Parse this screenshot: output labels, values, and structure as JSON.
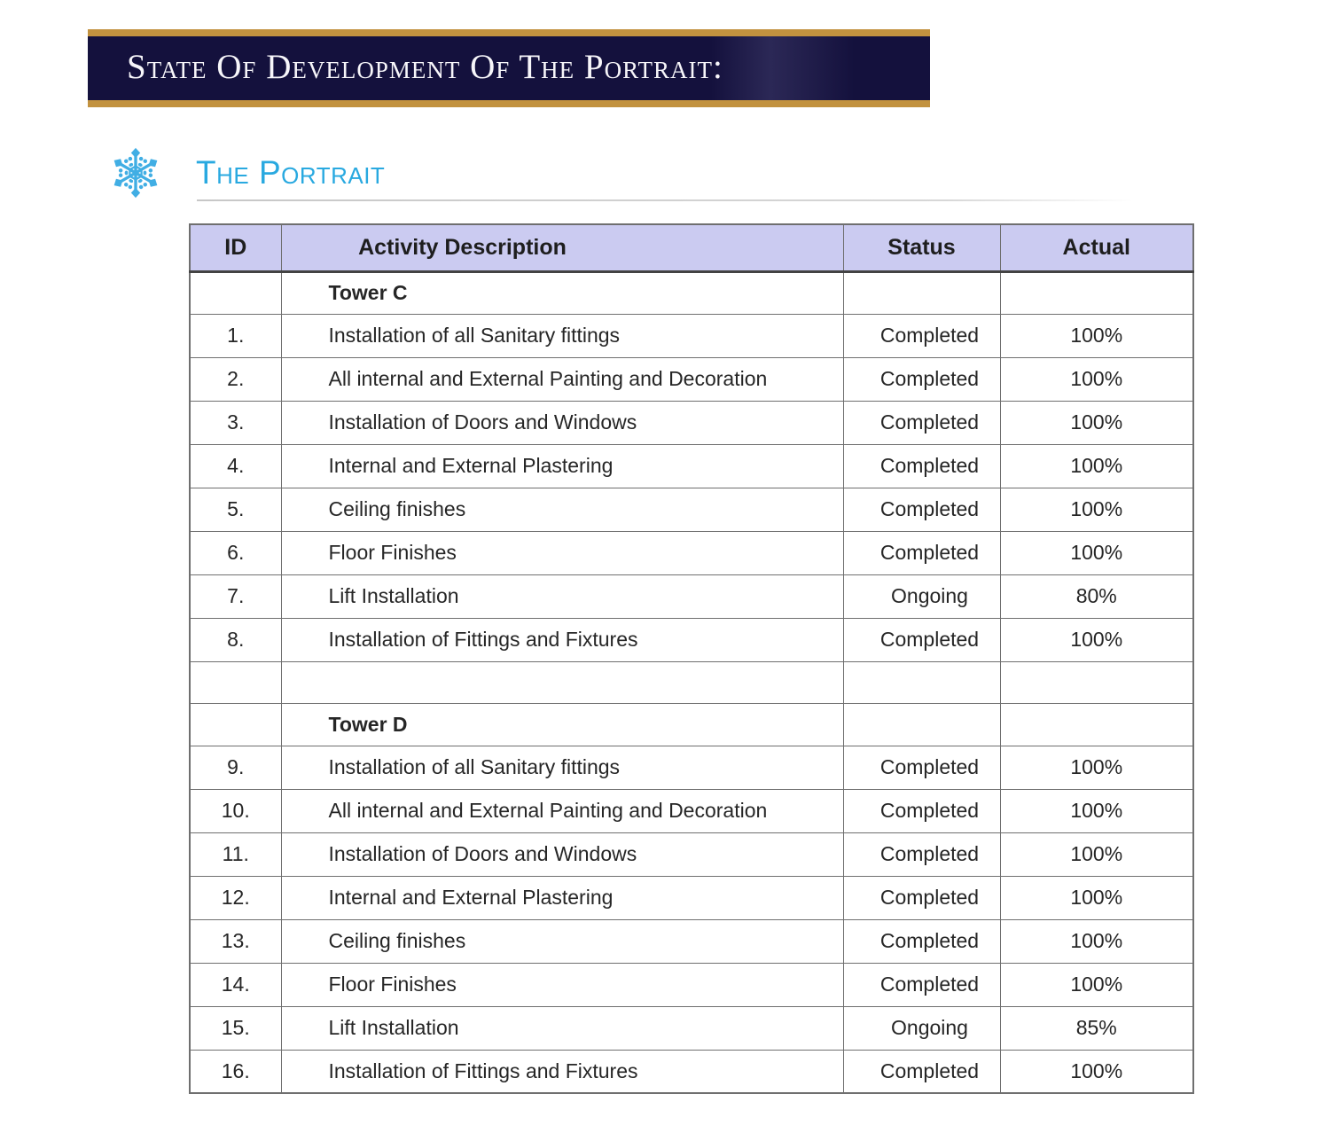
{
  "banner": {
    "title": "State Of Development Of The Portrait:",
    "background_color": "#14113D",
    "border_color": "#C2923F",
    "text_color": "#F7F6FA"
  },
  "section": {
    "title": "The Portrait",
    "icon": "snowflake-icon",
    "accent_color": "#29A9E0",
    "icon_color": "#41AEE4"
  },
  "table": {
    "headers": [
      "ID",
      "Activity Description",
      "Status",
      "Actual"
    ],
    "header_fill": "#CBCBF1",
    "border_color": "#6F6F6F",
    "rows": [
      {
        "type": "group",
        "id": "",
        "activity": "Tower C",
        "status": "",
        "actual": ""
      },
      {
        "type": "data",
        "id": "1.",
        "activity": "Installation of all Sanitary fittings",
        "status": "Completed",
        "actual": "100%"
      },
      {
        "type": "data",
        "id": "2.",
        "activity": "All internal and External Painting and Decoration",
        "status": "Completed",
        "actual": "100%"
      },
      {
        "type": "data",
        "id": "3.",
        "activity": "Installation of Doors and Windows",
        "status": "Completed",
        "actual": "100%"
      },
      {
        "type": "data",
        "id": "4.",
        "activity": "Internal and External Plastering",
        "status": "Completed",
        "actual": "100%"
      },
      {
        "type": "data",
        "id": "5.",
        "activity": "Ceiling finishes",
        "status": "Completed",
        "actual": "100%"
      },
      {
        "type": "data",
        "id": "6.",
        "activity": "Floor Finishes",
        "status": "Completed",
        "actual": "100%"
      },
      {
        "type": "data",
        "id": "7.",
        "activity": "Lift Installation",
        "status": "Ongoing",
        "actual": "80%"
      },
      {
        "type": "data",
        "id": "8.",
        "activity": "Installation of Fittings and Fixtures",
        "status": "Completed",
        "actual": "100%"
      },
      {
        "type": "empty",
        "id": "",
        "activity": "",
        "status": "",
        "actual": ""
      },
      {
        "type": "group",
        "id": "",
        "activity": "Tower D",
        "status": "",
        "actual": ""
      },
      {
        "type": "data",
        "id": "9.",
        "activity": "Installation of all Sanitary fittings",
        "status": "Completed",
        "actual": "100%"
      },
      {
        "type": "data",
        "id": "10.",
        "activity": "All internal and External Painting and Decoration",
        "status": "Completed",
        "actual": "100%"
      },
      {
        "type": "data",
        "id": "11.",
        "activity": "Installation of Doors and Windows",
        "status": "Completed",
        "actual": "100%"
      },
      {
        "type": "data",
        "id": "12.",
        "activity": "Internal and External Plastering",
        "status": "Completed",
        "actual": "100%"
      },
      {
        "type": "data",
        "id": "13.",
        "activity": "Ceiling finishes",
        "status": "Completed",
        "actual": "100%"
      },
      {
        "type": "data",
        "id": "14.",
        "activity": "Floor Finishes",
        "status": "Completed",
        "actual": "100%"
      },
      {
        "type": "data",
        "id": "15.",
        "activity": "Lift Installation",
        "status": "Ongoing",
        "actual": "85%"
      },
      {
        "type": "data",
        "id": "16.",
        "activity": "Installation of Fittings and Fixtures",
        "status": "Completed",
        "actual": "100%"
      }
    ]
  }
}
